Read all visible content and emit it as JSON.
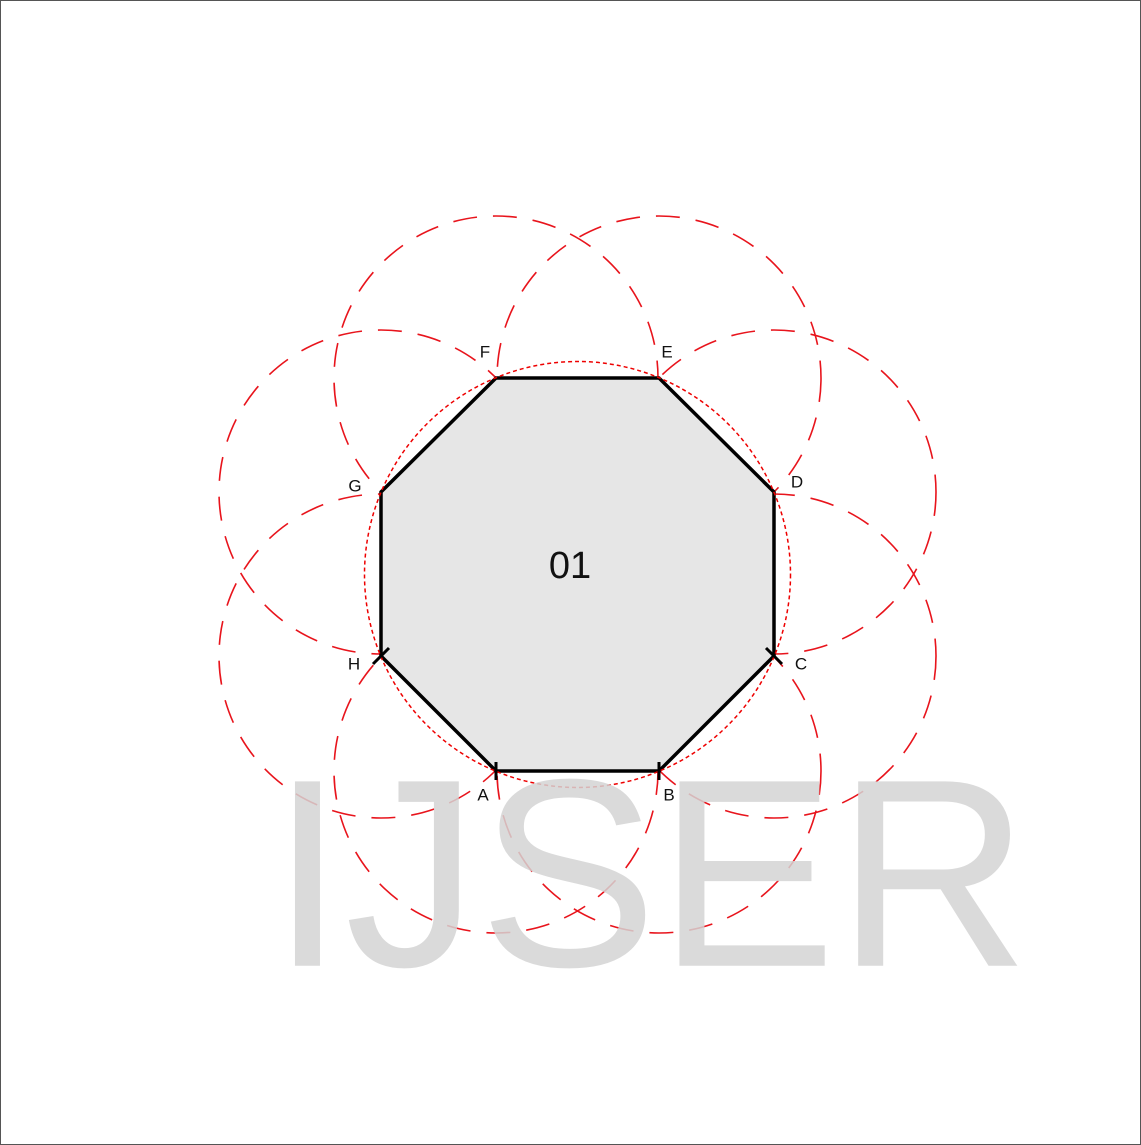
{
  "diagram": {
    "center_label": "01",
    "watermark": "IJSER",
    "vertices": [
      {
        "label": "A"
      },
      {
        "label": "B"
      },
      {
        "label": "C"
      },
      {
        "label": "D"
      },
      {
        "label": "E"
      },
      {
        "label": "F"
      },
      {
        "label": "G"
      },
      {
        "label": "H"
      }
    ]
  }
}
